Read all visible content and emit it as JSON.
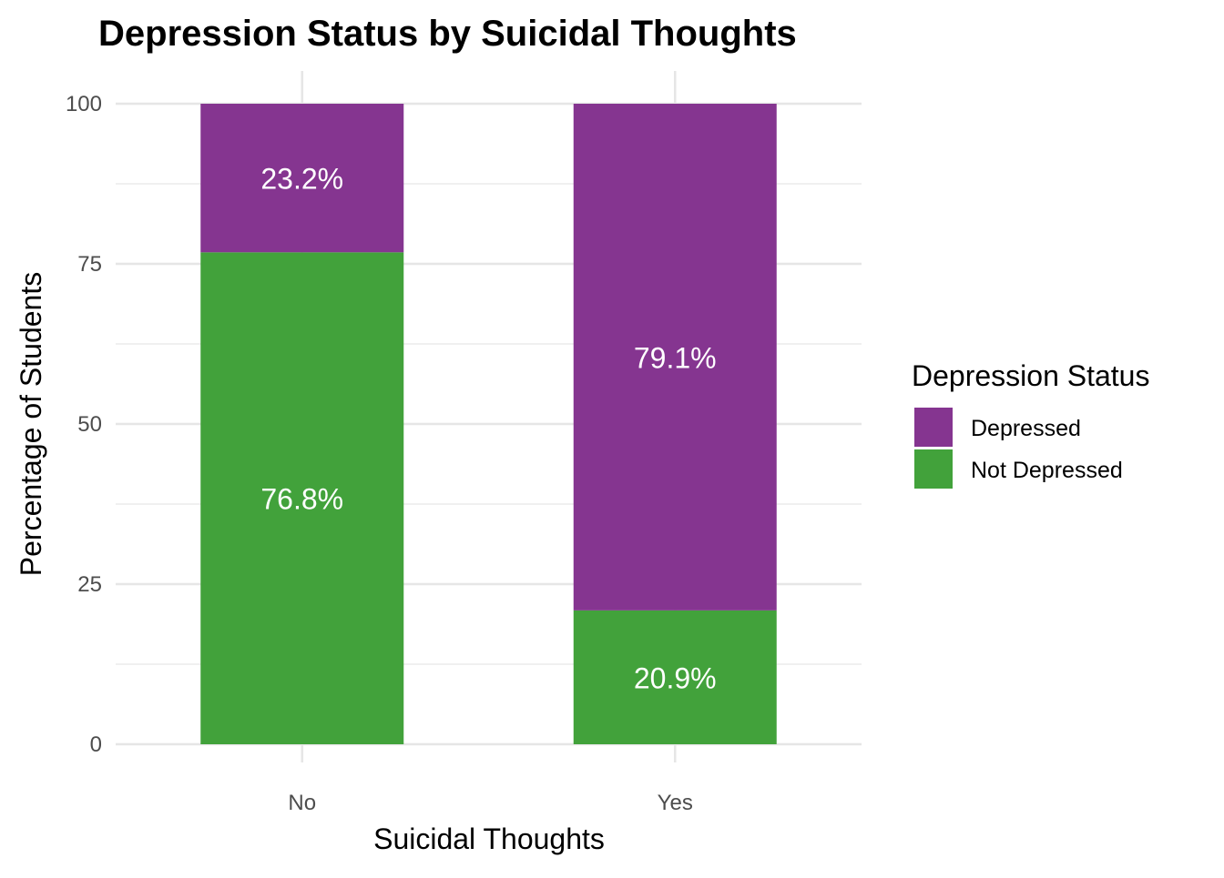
{
  "chart_data": {
    "type": "bar",
    "stacked": true,
    "title": "Depression Status by Suicidal Thoughts",
    "xlabel": "Suicidal Thoughts",
    "ylabel": "Percentage of Students",
    "categories": [
      "No",
      "Yes"
    ],
    "ylim": [
      0,
      100
    ],
    "yticks": [
      0,
      25,
      50,
      75,
      100
    ],
    "grid": true,
    "legend": {
      "title": "Depression Status",
      "placement": "right"
    },
    "series": [
      {
        "name": "Depressed",
        "color": "#853590",
        "values": [
          23.2,
          79.1
        ],
        "labels": [
          "23.2%",
          "79.1%"
        ]
      },
      {
        "name": "Not Depressed",
        "color": "#42a23b",
        "values": [
          76.8,
          20.9
        ],
        "labels": [
          "76.8%",
          "20.9%"
        ]
      }
    ]
  }
}
